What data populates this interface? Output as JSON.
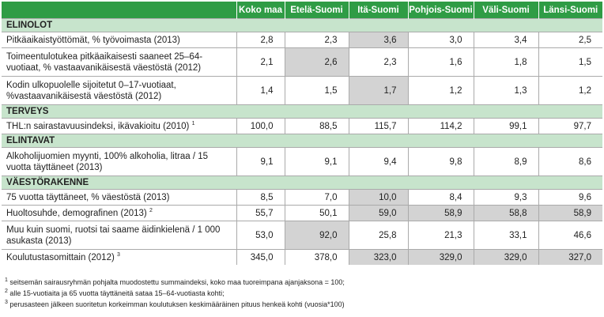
{
  "table": {
    "columns": [
      "",
      "Koko maa",
      "Etelä-Suomi",
      "Itä-Suomi",
      "Pohjois-Suomi",
      "Väli-Suomi",
      "Länsi-Suomi"
    ],
    "rows": [
      {
        "type": "section",
        "label": "ELINOLOT"
      },
      {
        "type": "data",
        "label": "Pitkäaikaistyöttömät, % työvoimasta (2013)",
        "values": [
          "2,8",
          "2,3",
          "3,6",
          "3,0",
          "3,4",
          "2,5"
        ],
        "hl": [
          false,
          false,
          true,
          false,
          false,
          false
        ],
        "tall": false
      },
      {
        "type": "data",
        "label": "Toimeentulotukea pitkäaikaisesti saaneet  25–64-vuotiaat, % vastaavanikäisestä väestöstä (2012)",
        "values": [
          "2,1",
          "2,6",
          "2,3",
          "1,6",
          "1,8",
          "1,5"
        ],
        "hl": [
          false,
          true,
          false,
          false,
          false,
          false
        ],
        "tall": true
      },
      {
        "type": "data",
        "label": "Kodin ulkopuolelle sijoitetut 0–17-vuotiaat, %vastaavanikäisestä väestöstä (2012)",
        "values": [
          "1,4",
          "1,5",
          "1,7",
          "1,2",
          "1,3",
          "1,2"
        ],
        "hl": [
          false,
          false,
          true,
          false,
          false,
          false
        ],
        "tall": true
      },
      {
        "type": "section",
        "label": "TERVEYS"
      },
      {
        "type": "data",
        "label": "THL:n sairastavuusindeksi, ikävakioitu (2010)",
        "sup": "1",
        "values": [
          "100,0",
          "88,5",
          "115,7",
          "114,2",
          "99,1",
          "97,7"
        ],
        "hl": [
          false,
          false,
          false,
          false,
          false,
          false
        ],
        "tall": false
      },
      {
        "type": "section",
        "label": "ELINTAVAT"
      },
      {
        "type": "data",
        "label": "Alkoholijuomien myynti, 100% alkoholia, litraa / 15 vuotta täyttäneet (2013)",
        "values": [
          "9,1",
          "9,1",
          "9,4",
          "9,8",
          "8,9",
          "8,6"
        ],
        "hl": [
          false,
          false,
          false,
          false,
          false,
          false
        ],
        "tall": true
      },
      {
        "type": "section",
        "label": "VÄESTÖRAKENNE"
      },
      {
        "type": "data",
        "label": "75 vuotta täyttäneet, % väestöstä (2013)",
        "values": [
          "8,5",
          "7,0",
          "10,0",
          "8,4",
          "9,3",
          "9,6"
        ],
        "hl": [
          false,
          false,
          true,
          false,
          false,
          false
        ],
        "tall": false
      },
      {
        "type": "data",
        "label": "Huoltosuhde, demografinen (2013)",
        "sup": "2",
        "values": [
          "55,7",
          "50,1",
          "59,0",
          "58,9",
          "58,8",
          "58,9"
        ],
        "hl": [
          false,
          false,
          true,
          true,
          true,
          true
        ],
        "tall": false
      },
      {
        "type": "data",
        "label": "Muu kuin suomi, ruotsi tai saame äidinkielenä / 1 000 asukasta (2013)",
        "values": [
          "53,0",
          "92,0",
          "25,8",
          "21,3",
          "33,1",
          "46,6"
        ],
        "hl": [
          false,
          true,
          false,
          false,
          false,
          false
        ],
        "tall": true
      },
      {
        "type": "data",
        "label": "Koulutustasomittain (2012)",
        "sup": "3",
        "values": [
          "345,0",
          "378,0",
          "323,0",
          "329,0",
          "329,0",
          "327,0"
        ],
        "hl": [
          false,
          false,
          true,
          true,
          true,
          true
        ],
        "tall": false
      }
    ]
  },
  "notes": [
    {
      "sup": "1",
      "text": " seitsemän sairausryhmän pohjalta muodostettu summaindeksi, koko maa tuoreimpana ajanjaksona = 100;"
    },
    {
      "sup": "2",
      "text": " alle 15-vuotiaita ja 65 vuotta täyttäneitä sataa 15–64-vuotiasta kohti;"
    },
    {
      "sup": "3",
      "text": " perusasteen jälkeen suoritetun korkeimman koulutuksen keskimääräinen pituus henkeä kohti (vuosia*100)"
    }
  ]
}
